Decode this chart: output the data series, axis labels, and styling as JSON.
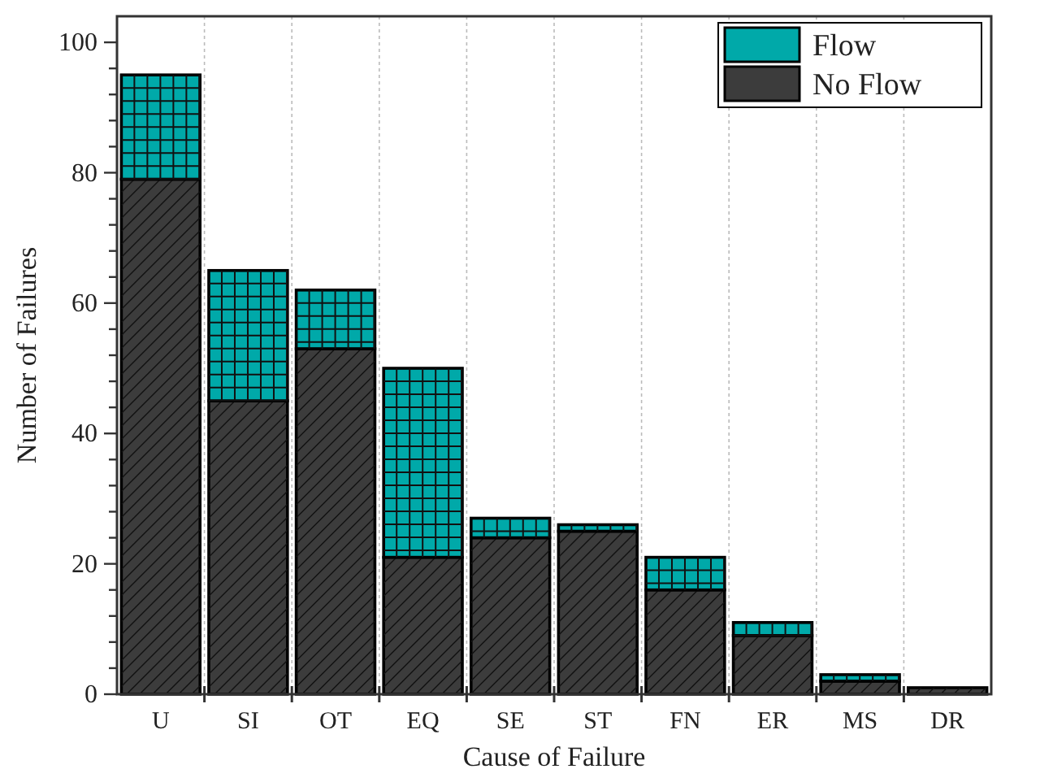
{
  "chart_data": {
    "type": "bar",
    "stacked": true,
    "xlabel": "Cause of Failure",
    "ylabel": "Number of Failures",
    "categories": [
      "U",
      "SI",
      "OT",
      "EQ",
      "SE",
      "ST",
      "FN",
      "ER",
      "MS",
      "DR"
    ],
    "series": [
      {
        "name": "No Flow",
        "color": "#3c3c3c",
        "values": [
          79,
          45,
          53,
          21,
          24,
          25,
          16,
          9,
          2,
          1
        ]
      },
      {
        "name": "Flow",
        "color": "#00a9a9",
        "values": [
          16,
          20,
          9,
          29,
          3,
          1,
          5,
          2,
          1,
          0
        ]
      }
    ],
    "ylim": [
      0,
      104
    ],
    "yticks": [
      0,
      {
        "value": 4,
        "label": null
      },
      {
        "value": 8,
        "label": null
      },
      {
        "value": 12,
        "label": null
      },
      {
        "value": 16,
        "label": null
      },
      20,
      {
        "value": 24,
        "label": null
      },
      {
        "value": 28,
        "label": null
      },
      {
        "value": 32,
        "label": null
      },
      {
        "value": 36,
        "label": null
      },
      40,
      {
        "value": 44,
        "label": null
      },
      {
        "value": 48,
        "label": null
      },
      {
        "value": 52,
        "label": null
      },
      {
        "value": 56,
        "label": null
      },
      60,
      {
        "value": 64,
        "label": null
      },
      {
        "value": 68,
        "label": null
      },
      {
        "value": 72,
        "label": null
      },
      {
        "value": 76,
        "label": null
      },
      80,
      {
        "value": 84,
        "label": null
      },
      {
        "value": 88,
        "label": null
      },
      {
        "value": 92,
        "label": null
      },
      {
        "value": 96,
        "label": null
      },
      100
    ],
    "grid": "x",
    "legend": "top right"
  }
}
